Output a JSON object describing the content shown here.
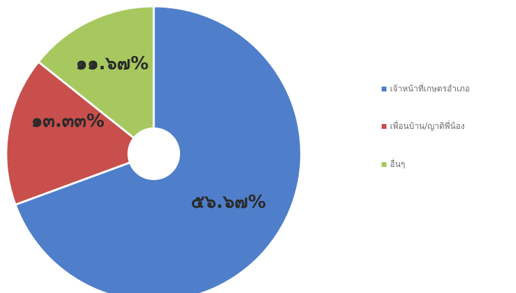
{
  "chart_data": {
    "type": "pie",
    "style": "donut",
    "categories": [
      "เจ้าหน้าที่เกษตรอำเภอ",
      "เพื่อนบ้าน/ญาติพี่น้อง",
      "อื่นๆ"
    ],
    "values": [
      56.67,
      13.33,
      11.67
    ],
    "data_labels": [
      "๕๖.๖๗%",
      "๑๓.๓๓%",
      "๑๑.๖๗%"
    ],
    "colors": [
      "#4f7fcb",
      "#c84f4c",
      "#a6c85e"
    ],
    "legend_position": "right",
    "title": ""
  }
}
